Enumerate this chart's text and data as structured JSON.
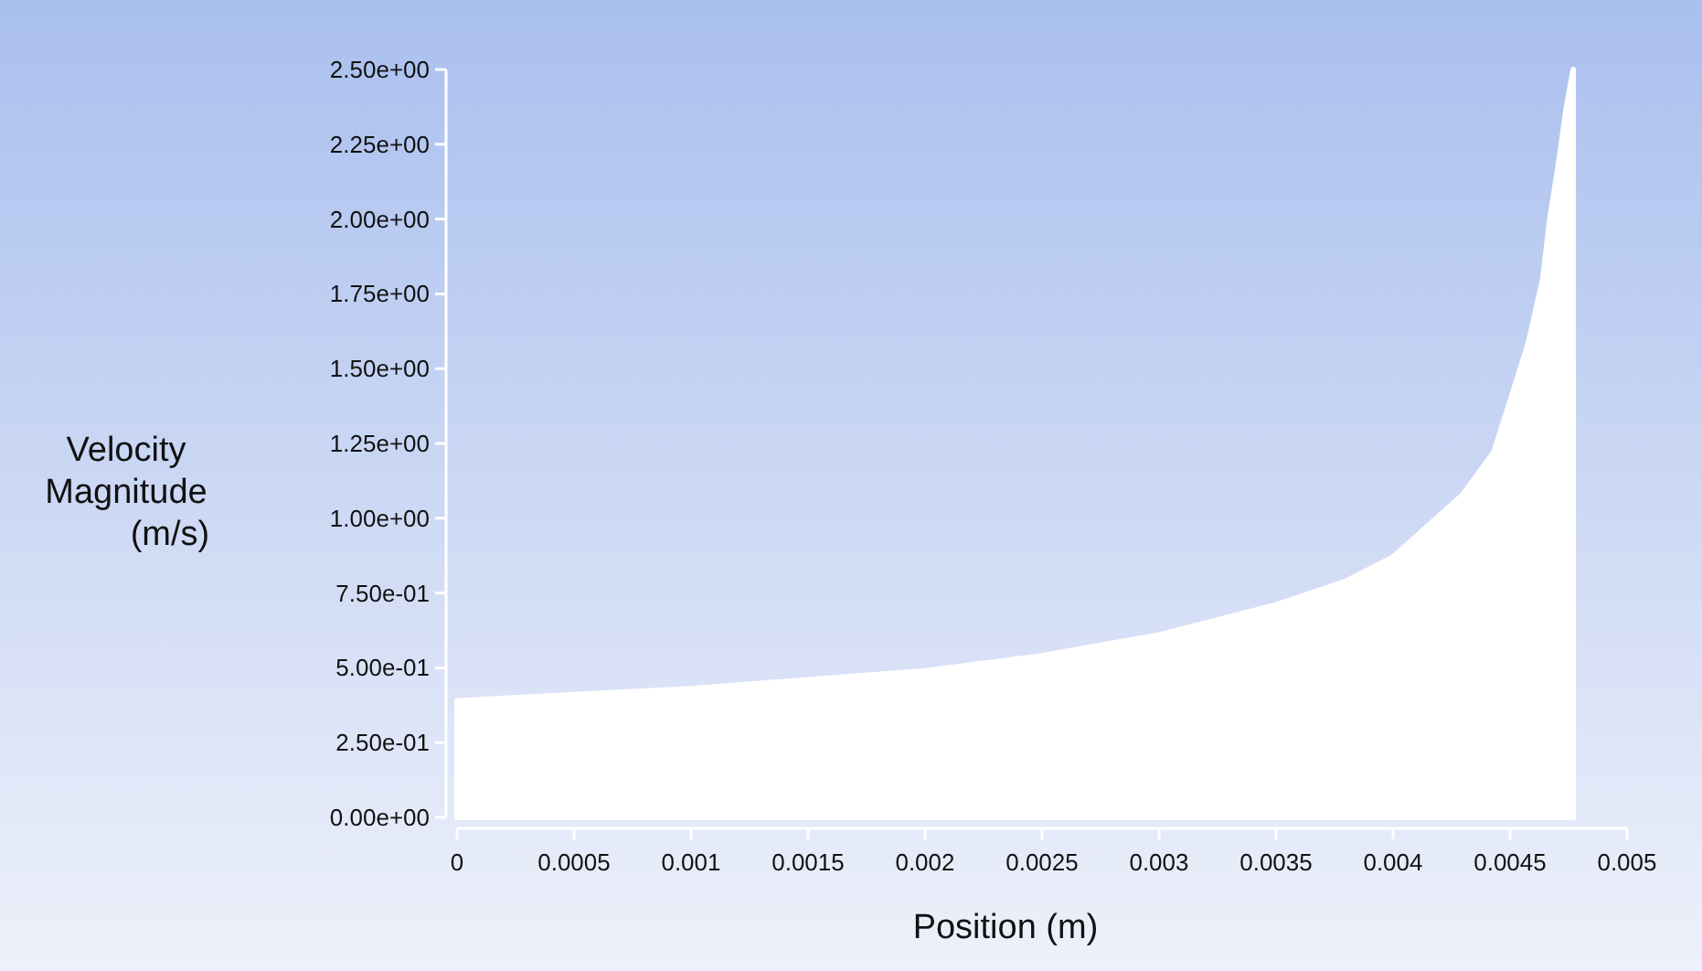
{
  "chart_data": {
    "type": "area",
    "xlabel": "Position (m)",
    "ylabel": "Velocity Magnitude (m/s)",
    "xlim": [
      0,
      0.005
    ],
    "ylim": [
      0,
      2.5
    ],
    "xticks": [
      0,
      0.0005,
      0.001,
      0.0015,
      0.002,
      0.0025,
      0.003,
      0.0035,
      0.004,
      0.0045,
      0.005
    ],
    "yticks": [
      {
        "value": 0,
        "label": "0.00e+00"
      },
      {
        "value": 0.25,
        "label": "2.50e-01"
      },
      {
        "value": 0.5,
        "label": "5.00e-01"
      },
      {
        "value": 0.75,
        "label": "7.50e-01"
      },
      {
        "value": 1,
        "label": "1.00e+00"
      },
      {
        "value": 1.25,
        "label": "1.25e+00"
      },
      {
        "value": 1.5,
        "label": "1.50e+00"
      },
      {
        "value": 1.75,
        "label": "1.75e+00"
      },
      {
        "value": 2,
        "label": "2.00e+00"
      },
      {
        "value": 2.25,
        "label": "2.25e+00"
      },
      {
        "value": 2.5,
        "label": "2.50e+00"
      }
    ],
    "series": [
      {
        "color": "#ffffff",
        "x": [
          0,
          0.0005,
          0.001,
          0.0015,
          0.002,
          0.0025,
          0.003,
          0.0035,
          0.0038,
          0.004,
          0.0043,
          0.00443,
          0.0045,
          0.00458,
          0.00464,
          0.00467,
          0.00471,
          0.00474,
          0.00477
        ],
        "values": [
          0.39,
          0.41,
          0.43,
          0.46,
          0.49,
          0.54,
          0.61,
          0.71,
          0.79,
          0.87,
          1.08,
          1.22,
          1.39,
          1.59,
          1.8,
          2.0,
          2.2,
          2.37,
          2.5
        ]
      }
    ]
  }
}
